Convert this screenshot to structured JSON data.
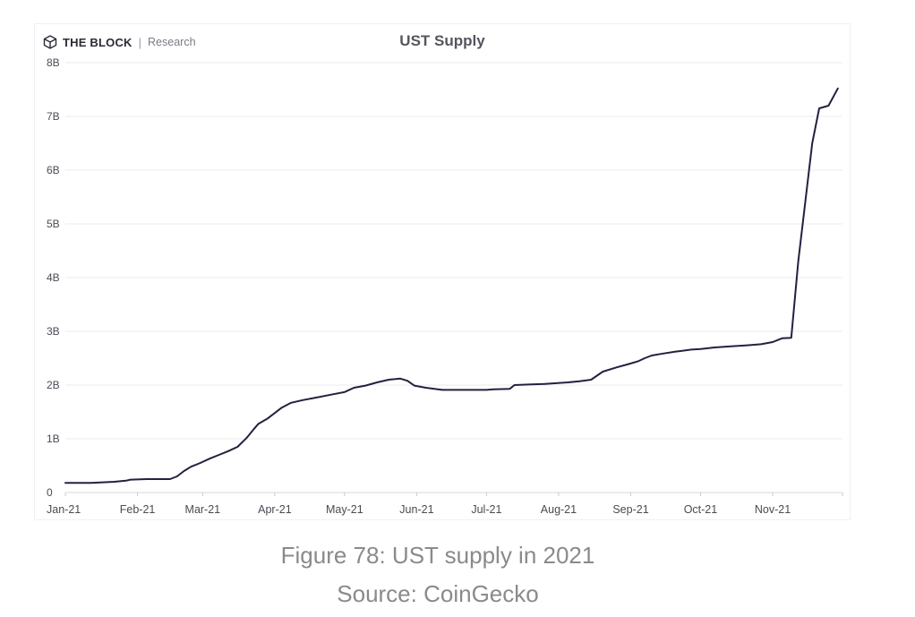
{
  "brand": {
    "name": "THE BLOCK",
    "separator": "|",
    "sub": "Research",
    "logo_icon": "the-block-cube-icon"
  },
  "caption": {
    "title": "Figure 78: UST supply in 2021",
    "source": "Source: CoinGecko"
  },
  "colors": {
    "line": "#23213f",
    "grid": "#ebebee",
    "axis_text": "#4a4a55"
  },
  "chart_data": {
    "type": "line",
    "title": "UST Supply",
    "xlabel": "",
    "ylabel": "",
    "ylim": [
      0,
      8
    ],
    "yunit": "B",
    "yticks": [
      0,
      1,
      2,
      3,
      4,
      5,
      6,
      7,
      8
    ],
    "ytick_labels": [
      "0",
      "1B",
      "2B",
      "3B",
      "4B",
      "5B",
      "6B",
      "7B",
      "8B"
    ],
    "xlim": [
      "2021-01-01",
      "2021-12-01"
    ],
    "xticks": [
      "2021-01-01",
      "2021-02-01",
      "2021-03-01",
      "2021-04-01",
      "2021-05-01",
      "2021-06-01",
      "2021-07-01",
      "2021-08-01",
      "2021-09-01",
      "2021-10-01",
      "2021-11-01"
    ],
    "xtick_labels": [
      "Jan-21",
      "Feb-21",
      "Mar-21",
      "Apr-21",
      "May-21",
      "Jun-21",
      "Jul-21",
      "Aug-21",
      "Sep-21",
      "Oct-21",
      "Nov-21"
    ],
    "grid": true,
    "series": [
      {
        "color": "#23213f",
        "points": [
          [
            "2021-01-01",
            0.18
          ],
          [
            "2021-01-12",
            0.18
          ],
          [
            "2021-01-22",
            0.2
          ],
          [
            "2021-01-27",
            0.22
          ],
          [
            "2021-01-29",
            0.24
          ],
          [
            "2021-02-05",
            0.25
          ],
          [
            "2021-02-15",
            0.25
          ],
          [
            "2021-02-18",
            0.3
          ],
          [
            "2021-02-21",
            0.4
          ],
          [
            "2021-02-24",
            0.48
          ],
          [
            "2021-02-28",
            0.55
          ],
          [
            "2021-03-04",
            0.63
          ],
          [
            "2021-03-08",
            0.7
          ],
          [
            "2021-03-12",
            0.77
          ],
          [
            "2021-03-16",
            0.85
          ],
          [
            "2021-03-20",
            1.02
          ],
          [
            "2021-03-23",
            1.18
          ],
          [
            "2021-03-25",
            1.28
          ],
          [
            "2021-03-29",
            1.38
          ],
          [
            "2021-04-01",
            1.48
          ],
          [
            "2021-04-04",
            1.58
          ],
          [
            "2021-04-08",
            1.67
          ],
          [
            "2021-04-13",
            1.72
          ],
          [
            "2021-04-18",
            1.76
          ],
          [
            "2021-04-25",
            1.82
          ],
          [
            "2021-05-01",
            1.87
          ],
          [
            "2021-05-05",
            1.95
          ],
          [
            "2021-05-10",
            1.99
          ],
          [
            "2021-05-15",
            2.05
          ],
          [
            "2021-05-20",
            2.1
          ],
          [
            "2021-05-25",
            2.12
          ],
          [
            "2021-05-28",
            2.08
          ],
          [
            "2021-05-31",
            1.99
          ],
          [
            "2021-06-05",
            1.95
          ],
          [
            "2021-06-12",
            1.91
          ],
          [
            "2021-06-20",
            1.91
          ],
          [
            "2021-06-27",
            1.91
          ],
          [
            "2021-07-01",
            1.91
          ],
          [
            "2021-07-04",
            1.92
          ],
          [
            "2021-07-11",
            1.93
          ],
          [
            "2021-07-13",
            2.0
          ],
          [
            "2021-07-19",
            2.01
          ],
          [
            "2021-07-26",
            2.02
          ],
          [
            "2021-08-05",
            2.05
          ],
          [
            "2021-08-10",
            2.07
          ],
          [
            "2021-08-15",
            2.1
          ],
          [
            "2021-08-20",
            2.25
          ],
          [
            "2021-08-26",
            2.33
          ],
          [
            "2021-08-31",
            2.39
          ],
          [
            "2021-09-04",
            2.44
          ],
          [
            "2021-09-07",
            2.5
          ],
          [
            "2021-09-10",
            2.55
          ],
          [
            "2021-09-14",
            2.58
          ],
          [
            "2021-09-20",
            2.62
          ],
          [
            "2021-09-27",
            2.66
          ],
          [
            "2021-10-01",
            2.67
          ],
          [
            "2021-10-07",
            2.7
          ],
          [
            "2021-10-14",
            2.72
          ],
          [
            "2021-10-21",
            2.74
          ],
          [
            "2021-10-27",
            2.76
          ],
          [
            "2021-11-01",
            2.8
          ],
          [
            "2021-11-05",
            2.87
          ],
          [
            "2021-11-09",
            2.88
          ],
          [
            "2021-11-12",
            4.3
          ],
          [
            "2021-11-15",
            5.4
          ],
          [
            "2021-11-18",
            6.5
          ],
          [
            "2021-11-21",
            7.15
          ],
          [
            "2021-11-25",
            7.2
          ],
          [
            "2021-11-29",
            7.52
          ]
        ]
      }
    ]
  }
}
